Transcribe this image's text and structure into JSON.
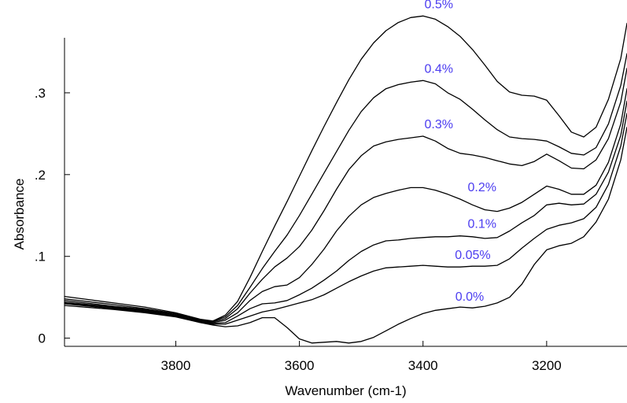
{
  "chart_data": {
    "type": "line",
    "xlabel": "Wavenumber (cm-1)",
    "ylabel": "Absorbance",
    "x_reversed": true,
    "xlim": [
      3980,
      3070
    ],
    "ylim": [
      -0.01,
      0.375
    ],
    "xticks": [
      {
        "value": 3800,
        "label": "3800"
      },
      {
        "value": 3600,
        "label": "3600"
      },
      {
        "value": 3400,
        "label": "3400"
      },
      {
        "value": 3200,
        "label": "3200"
      }
    ],
    "yticks": [
      {
        "value": 0,
        "label": "0"
      },
      {
        "value": 0.1,
        "label": ".1"
      },
      {
        "value": 0.2,
        "label": ".2"
      },
      {
        "value": 0.3,
        "label": ".3"
      }
    ],
    "grid": false,
    "series_color": "#000000",
    "label_color": "#4b3cf0",
    "x": [
      3980,
      3900,
      3850,
      3800,
      3760,
      3740,
      3720,
      3700,
      3680,
      3660,
      3640,
      3620,
      3600,
      3580,
      3560,
      3540,
      3520,
      3500,
      3480,
      3460,
      3440,
      3420,
      3400,
      3380,
      3360,
      3340,
      3320,
      3300,
      3280,
      3260,
      3240,
      3220,
      3200,
      3180,
      3160,
      3140,
      3120,
      3100,
      3080,
      3070
    ],
    "series": [
      {
        "name": "0.5%",
        "label_value": 3400,
        "values": [
          0.051,
          0.043,
          0.038,
          0.031,
          0.023,
          0.021,
          0.028,
          0.045,
          0.074,
          0.106,
          0.137,
          0.167,
          0.198,
          0.229,
          0.259,
          0.288,
          0.316,
          0.341,
          0.361,
          0.376,
          0.386,
          0.392,
          0.394,
          0.39,
          0.381,
          0.369,
          0.353,
          0.334,
          0.314,
          0.301,
          0.297,
          0.296,
          0.291,
          0.272,
          0.252,
          0.246,
          0.258,
          0.292,
          0.342,
          0.385
        ]
      },
      {
        "name": "0.4%",
        "label_value": 3400,
        "values": [
          0.048,
          0.041,
          0.036,
          0.03,
          0.022,
          0.021,
          0.026,
          0.04,
          0.062,
          0.085,
          0.106,
          0.126,
          0.15,
          0.176,
          0.202,
          0.228,
          0.254,
          0.277,
          0.294,
          0.305,
          0.31,
          0.313,
          0.315,
          0.311,
          0.3,
          0.292,
          0.28,
          0.267,
          0.255,
          0.246,
          0.244,
          0.243,
          0.241,
          0.234,
          0.226,
          0.224,
          0.233,
          0.262,
          0.309,
          0.348
        ]
      },
      {
        "name": "0.3%",
        "label_value": 3400,
        "values": [
          0.046,
          0.039,
          0.035,
          0.029,
          0.021,
          0.02,
          0.024,
          0.036,
          0.055,
          0.072,
          0.087,
          0.098,
          0.112,
          0.132,
          0.156,
          0.182,
          0.206,
          0.223,
          0.235,
          0.24,
          0.243,
          0.245,
          0.247,
          0.241,
          0.232,
          0.226,
          0.224,
          0.221,
          0.217,
          0.213,
          0.211,
          0.216,
          0.225,
          0.217,
          0.208,
          0.207,
          0.218,
          0.244,
          0.289,
          0.33
        ]
      },
      {
        "name": "0.2%",
        "label_value": 3330,
        "values": [
          0.044,
          0.038,
          0.034,
          0.028,
          0.021,
          0.019,
          0.022,
          0.031,
          0.046,
          0.057,
          0.063,
          0.065,
          0.074,
          0.09,
          0.109,
          0.131,
          0.149,
          0.163,
          0.172,
          0.177,
          0.181,
          0.184,
          0.184,
          0.181,
          0.176,
          0.17,
          0.163,
          0.157,
          0.155,
          0.159,
          0.166,
          0.176,
          0.186,
          0.182,
          0.176,
          0.176,
          0.187,
          0.215,
          0.262,
          0.305
        ]
      },
      {
        "name": "0.1%",
        "label_value": 3330,
        "values": [
          0.043,
          0.037,
          0.033,
          0.027,
          0.02,
          0.018,
          0.019,
          0.027,
          0.036,
          0.042,
          0.043,
          0.046,
          0.053,
          0.061,
          0.071,
          0.082,
          0.095,
          0.106,
          0.114,
          0.119,
          0.12,
          0.122,
          0.123,
          0.124,
          0.124,
          0.125,
          0.124,
          0.122,
          0.123,
          0.131,
          0.141,
          0.15,
          0.163,
          0.165,
          0.163,
          0.164,
          0.176,
          0.203,
          0.248,
          0.29
        ]
      },
      {
        "name": "0.05%",
        "label_value": 3345,
        "values": [
          0.042,
          0.036,
          0.032,
          0.027,
          0.019,
          0.017,
          0.017,
          0.022,
          0.027,
          0.032,
          0.035,
          0.039,
          0.043,
          0.047,
          0.053,
          0.061,
          0.069,
          0.076,
          0.082,
          0.086,
          0.087,
          0.088,
          0.089,
          0.088,
          0.087,
          0.087,
          0.088,
          0.088,
          0.089,
          0.097,
          0.11,
          0.122,
          0.133,
          0.138,
          0.141,
          0.146,
          0.16,
          0.188,
          0.235,
          0.275
        ]
      },
      {
        "name": "0.0%",
        "label_value": 3350,
        "values": [
          0.04,
          0.035,
          0.031,
          0.026,
          0.019,
          0.016,
          0.014,
          0.015,
          0.019,
          0.025,
          0.025,
          0.013,
          -0.001,
          -0.006,
          -0.005,
          -0.004,
          -0.006,
          -0.004,
          0.001,
          0.009,
          0.017,
          0.024,
          0.03,
          0.034,
          0.036,
          0.038,
          0.037,
          0.039,
          0.043,
          0.05,
          0.066,
          0.09,
          0.108,
          0.113,
          0.116,
          0.124,
          0.142,
          0.17,
          0.218,
          0.258
        ]
      }
    ]
  }
}
